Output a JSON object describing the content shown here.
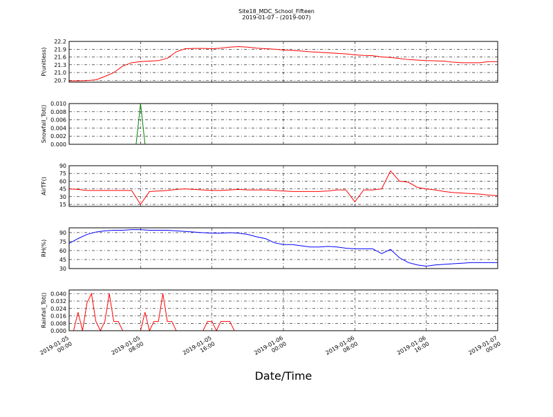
{
  "title": "Site18_MDC_School_Fifteen",
  "subtitle": "2019-01-07 - (2019-007)",
  "xlabel": "Date/Time",
  "chart_data": [
    {
      "type": "line",
      "ylabel": "P(unitless)",
      "ylim": [
        20.63,
        22.2
      ],
      "yticks": [
        20.7,
        {
          "value": 21.0,
          "label": "21.0"
        },
        21.3,
        21.6,
        21.9,
        22.2
      ],
      "grid": true,
      "xlim": [
        "2019-01-05 00:00",
        "2019-01-07 00:00"
      ],
      "xticks": [
        {
          "value": "2019-01-05 00:00",
          "label": "2019-01-05\n00:00"
        },
        {
          "value": "2019-01-05 08:00",
          "label": "2019-01-05\n08:00"
        },
        {
          "value": "2019-01-05 16:00",
          "label": "2019-01-05\n16:00"
        },
        {
          "value": "2019-01-06 00:00",
          "label": "2019-01-06\n00:00"
        },
        {
          "value": "2019-01-06 08:00",
          "label": "2019-01-06\n08:00"
        },
        {
          "value": "2019-01-06 16:00",
          "label": "2019-01-06\n16:00"
        },
        {
          "value": "2019-01-07 00:00",
          "label": "2019-01-07\n00:00"
        }
      ],
      "series": [
        {
          "color": "#ff0000",
          "x": [
            "2019-01-05 00:00",
            "2019-01-05 01:00",
            "2019-01-05 02:00",
            "2019-01-05 03:00",
            "2019-01-05 04:00",
            "2019-01-05 05:00",
            "2019-01-05 06:00",
            "2019-01-05 07:00",
            "2019-01-05 08:00",
            "2019-01-05 09:00",
            "2019-01-05 10:00",
            "2019-01-05 11:00",
            "2019-01-05 12:00",
            "2019-01-05 13:00",
            "2019-01-05 14:00",
            "2019-01-05 15:00",
            "2019-01-05 16:00",
            "2019-01-05 17:00",
            "2019-01-05 18:00",
            "2019-01-05 19:00",
            "2019-01-05 20:00",
            "2019-01-05 21:00",
            "2019-01-05 22:00",
            "2019-01-05 23:00",
            "2019-01-06 00:00",
            "2019-01-06 01:00",
            "2019-01-06 02:00",
            "2019-01-06 03:00",
            "2019-01-06 04:00",
            "2019-01-06 05:00",
            "2019-01-06 06:00",
            "2019-01-06 07:00",
            "2019-01-06 08:00",
            "2019-01-06 09:00",
            "2019-01-06 10:00",
            "2019-01-06 11:00",
            "2019-01-06 12:00",
            "2019-01-06 13:00",
            "2019-01-06 14:00",
            "2019-01-06 15:00",
            "2019-01-06 16:00",
            "2019-01-06 17:00",
            "2019-01-06 18:00",
            "2019-01-06 19:00",
            "2019-01-06 20:00",
            "2019-01-06 21:00",
            "2019-01-06 22:00",
            "2019-01-06 23:00",
            "2019-01-07 00:00"
          ],
          "values": [
            20.68,
            20.68,
            20.69,
            20.72,
            20.85,
            21.0,
            21.25,
            21.38,
            21.42,
            21.44,
            21.46,
            21.55,
            21.8,
            21.92,
            21.93,
            21.93,
            21.92,
            21.94,
            21.98,
            22.0,
            21.98,
            21.94,
            21.92,
            21.9,
            21.87,
            21.85,
            21.83,
            21.8,
            21.78,
            21.76,
            21.74,
            21.72,
            21.68,
            21.66,
            21.65,
            21.6,
            21.58,
            21.54,
            21.5,
            21.48,
            21.46,
            21.45,
            21.44,
            21.4,
            21.38,
            21.38,
            21.38,
            21.42,
            21.42
          ]
        }
      ]
    },
    {
      "type": "line",
      "ylabel": "Snowfall_Tot()",
      "ylim": [
        0,
        0.01
      ],
      "yticks": [
        {
          "value": 0,
          "label": "0.000"
        },
        0.002,
        0.004,
        0.006,
        0.008,
        {
          "value": 0.01,
          "label": "0.010"
        }
      ],
      "grid": true,
      "xlim": [
        "2019-01-05 00:00",
        "2019-01-07 00:00"
      ],
      "xticks": [
        "2019-01-05 00:00",
        "2019-01-05 08:00",
        "2019-01-05 16:00",
        "2019-01-06 00:00",
        "2019-01-06 08:00",
        "2019-01-06 16:00",
        "2019-01-07 00:00"
      ],
      "series": [
        {
          "color": "#007f00",
          "x": [
            "2019-01-05 00:00",
            "2019-01-05 07:30",
            "2019-01-05 08:00",
            "2019-01-05 08:30",
            "2019-01-07 00:00"
          ],
          "values": [
            0,
            0,
            0.01,
            0,
            0
          ]
        }
      ]
    },
    {
      "type": "line",
      "ylabel": "AirTF()",
      "ylim": [
        11,
        90
      ],
      "yticks": [
        15,
        30,
        45,
        60,
        75,
        90
      ],
      "grid": true,
      "xlim": [
        "2019-01-05 00:00",
        "2019-01-07 00:00"
      ],
      "xticks": [
        "2019-01-05 00:00",
        "2019-01-05 08:00",
        "2019-01-05 16:00",
        "2019-01-06 00:00",
        "2019-01-06 08:00",
        "2019-01-06 16:00",
        "2019-01-07 00:00"
      ],
      "series": [
        {
          "color": "#ff0000",
          "x": [
            "2019-01-05 00:00",
            "2019-01-05 01:00",
            "2019-01-05 02:00",
            "2019-01-05 03:00",
            "2019-01-05 04:00",
            "2019-01-05 05:00",
            "2019-01-05 06:00",
            "2019-01-05 07:00",
            "2019-01-05 08:00",
            "2019-01-05 09:00",
            "2019-01-05 10:00",
            "2019-01-05 11:00",
            "2019-01-05 12:00",
            "2019-01-05 13:00",
            "2019-01-05 14:00",
            "2019-01-05 15:00",
            "2019-01-05 16:00",
            "2019-01-05 17:00",
            "2019-01-05 18:00",
            "2019-01-05 19:00",
            "2019-01-05 20:00",
            "2019-01-05 21:00",
            "2019-01-05 22:00",
            "2019-01-05 23:00",
            "2019-01-06 00:00",
            "2019-01-06 01:00",
            "2019-01-06 02:00",
            "2019-01-06 03:00",
            "2019-01-06 04:00",
            "2019-01-06 05:00",
            "2019-01-06 06:00",
            "2019-01-06 07:00",
            "2019-01-06 08:00",
            "2019-01-06 09:00",
            "2019-01-06 10:00",
            "2019-01-06 11:00",
            "2019-01-06 12:00",
            "2019-01-06 13:00",
            "2019-01-06 14:00",
            "2019-01-06 15:00",
            "2019-01-06 16:00",
            "2019-01-06 17:00",
            "2019-01-06 18:00",
            "2019-01-06 19:00",
            "2019-01-06 20:00",
            "2019-01-06 21:00",
            "2019-01-06 22:00",
            "2019-01-06 23:00",
            "2019-01-07 00:00"
          ],
          "values": [
            45,
            44,
            42,
            42,
            42,
            42,
            42,
            42,
            15,
            40,
            41,
            42,
            44,
            45,
            44,
            43,
            42,
            42,
            43,
            44,
            43,
            43,
            43,
            42,
            41,
            40,
            40,
            40,
            40,
            41,
            43,
            43,
            20,
            43,
            43,
            45,
            80,
            60,
            58,
            48,
            45,
            43,
            40,
            38,
            37,
            36,
            35,
            33,
            32
          ]
        }
      ]
    },
    {
      "type": "line",
      "ylabel": "RH(%)",
      "ylim": [
        30,
        98
      ],
      "yticks": [
        30,
        45,
        60,
        75,
        90
      ],
      "grid": true,
      "xlim": [
        "2019-01-05 00:00",
        "2019-01-07 00:00"
      ],
      "xticks": [
        "2019-01-05 00:00",
        "2019-01-05 08:00",
        "2019-01-05 16:00",
        "2019-01-06 00:00",
        "2019-01-06 08:00",
        "2019-01-06 16:00",
        "2019-01-07 00:00"
      ],
      "series": [
        {
          "color": "#0000ff",
          "x": [
            "2019-01-05 00:00",
            "2019-01-05 01:00",
            "2019-01-05 02:00",
            "2019-01-05 03:00",
            "2019-01-05 04:00",
            "2019-01-05 05:00",
            "2019-01-05 06:00",
            "2019-01-05 07:00",
            "2019-01-05 08:00",
            "2019-01-05 09:00",
            "2019-01-05 10:00",
            "2019-01-05 11:00",
            "2019-01-05 12:00",
            "2019-01-05 13:00",
            "2019-01-05 14:00",
            "2019-01-05 15:00",
            "2019-01-05 16:00",
            "2019-01-05 17:00",
            "2019-01-05 18:00",
            "2019-01-05 19:00",
            "2019-01-05 20:00",
            "2019-01-05 21:00",
            "2019-01-05 22:00",
            "2019-01-05 23:00",
            "2019-01-06 00:00",
            "2019-01-06 01:00",
            "2019-01-06 02:00",
            "2019-01-06 03:00",
            "2019-01-06 04:00",
            "2019-01-06 05:00",
            "2019-01-06 06:00",
            "2019-01-06 07:00",
            "2019-01-06 08:00",
            "2019-01-06 09:00",
            "2019-01-06 10:00",
            "2019-01-06 11:00",
            "2019-01-06 12:00",
            "2019-01-06 13:00",
            "2019-01-06 14:00",
            "2019-01-06 15:00",
            "2019-01-06 16:00",
            "2019-01-06 17:00",
            "2019-01-06 18:00",
            "2019-01-06 19:00",
            "2019-01-06 20:00",
            "2019-01-06 21:00",
            "2019-01-06 22:00",
            "2019-01-06 23:00",
            "2019-01-07 00:00"
          ],
          "values": [
            72,
            80,
            87,
            91,
            93,
            94,
            94,
            95,
            95,
            94,
            94,
            94,
            93,
            92,
            91,
            90,
            89,
            89,
            90,
            89,
            87,
            83,
            80,
            73,
            70,
            70,
            68,
            66,
            66,
            67,
            66,
            64,
            63,
            63,
            63,
            55,
            62,
            48,
            40,
            36,
            34,
            36,
            37,
            38,
            39,
            40,
            40,
            40,
            40
          ]
        }
      ]
    },
    {
      "type": "line",
      "ylabel": "Rainfall_Tot()",
      "ylim": [
        0,
        0.044
      ],
      "yticks": [
        {
          "value": 0,
          "label": "0.000"
        },
        0.008,
        0.016,
        0.024,
        0.032,
        {
          "value": 0.04,
          "label": "0.040"
        }
      ],
      "grid": true,
      "xlim": [
        "2019-01-05 00:00",
        "2019-01-07 00:00"
      ],
      "xticks": [
        {
          "value": "2019-01-05 00:00",
          "label": "2019-01-05\n00:00"
        },
        {
          "value": "2019-01-05 08:00",
          "label": "2019-01-05\n08:00"
        },
        {
          "value": "2019-01-05 16:00",
          "label": "2019-01-05\n16:00"
        },
        {
          "value": "2019-01-06 00:00",
          "label": "2019-01-06\n00:00"
        },
        {
          "value": "2019-01-06 08:00",
          "label": "2019-01-06\n08:00"
        },
        {
          "value": "2019-01-06 16:00",
          "label": "2019-01-06\n16:00"
        },
        {
          "value": "2019-01-07 00:00",
          "label": "2019-01-07\n00:00"
        }
      ],
      "series": [
        {
          "color": "#ff0000",
          "x": [
            "2019-01-05 00:00",
            "2019-01-05 00:30",
            "2019-01-05 01:00",
            "2019-01-05 01:30",
            "2019-01-05 02:00",
            "2019-01-05 02:30",
            "2019-01-05 03:00",
            "2019-01-05 03:30",
            "2019-01-05 04:00",
            "2019-01-05 04:30",
            "2019-01-05 05:00",
            "2019-01-05 05:30",
            "2019-01-05 06:00",
            "2019-01-05 08:00",
            "2019-01-05 08:30",
            "2019-01-05 09:00",
            "2019-01-05 09:30",
            "2019-01-05 10:00",
            "2019-01-05 10:30",
            "2019-01-05 11:00",
            "2019-01-05 11:30",
            "2019-01-05 12:00",
            "2019-01-05 15:00",
            "2019-01-05 15:30",
            "2019-01-05 16:00",
            "2019-01-05 16:30",
            "2019-01-05 17:00",
            "2019-01-05 18:00",
            "2019-01-05 18:30",
            "2019-01-07 00:00"
          ],
          "values": [
            0,
            0,
            0.02,
            0,
            0.03,
            0.04,
            0.01,
            0,
            0.01,
            0.04,
            0.01,
            0.01,
            0,
            0,
            0.02,
            0,
            0.01,
            0.01,
            0.04,
            0.01,
            0.01,
            0,
            0,
            0.01,
            0.01,
            0,
            0.01,
            0.01,
            0,
            0
          ]
        }
      ]
    }
  ]
}
